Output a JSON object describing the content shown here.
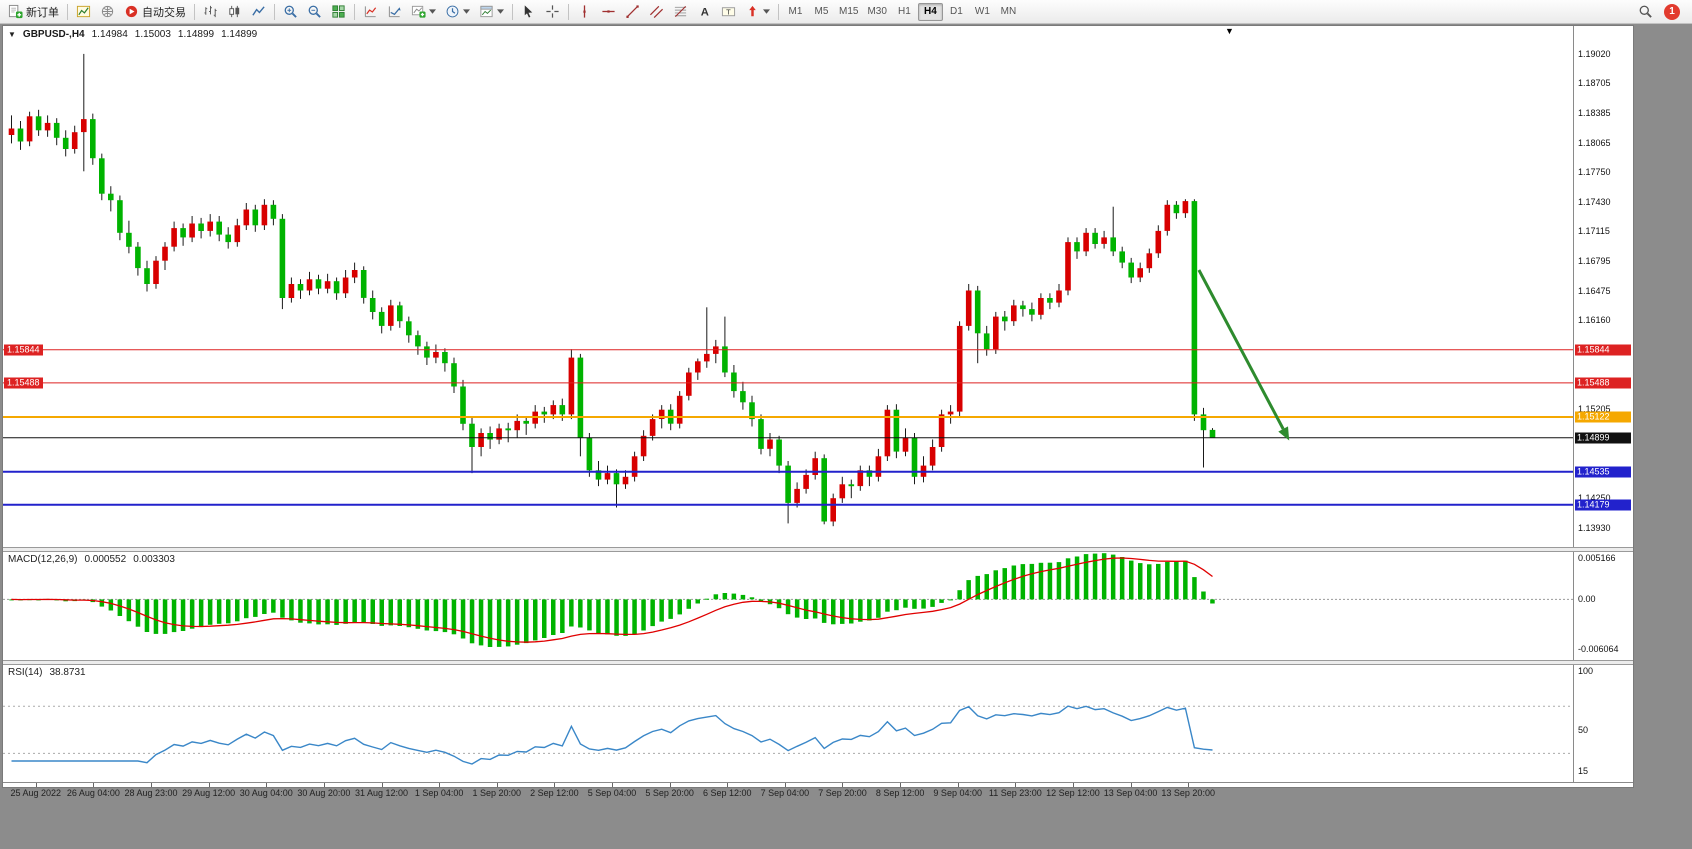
{
  "toolbar": {
    "new_order": "新订单",
    "autotrading": "自动交易",
    "timeframes": [
      "M1",
      "M5",
      "M15",
      "M30",
      "H1",
      "H4",
      "D1",
      "W1",
      "MN"
    ],
    "active_timeframe": "H4",
    "notification_count": "1"
  },
  "symbol_bar": {
    "dropdown_glyph": "▼",
    "title": "GBPUSD-,H4",
    "open": "1.14984",
    "high": "1.15003",
    "low": "1.14899",
    "close": "1.14899"
  },
  "shift_marker_glyph": "▼",
  "chart_data": {
    "type": "candlestick",
    "symbol": "GBPUSD-",
    "timeframe": "H4",
    "up_color": "#d80000",
    "down_color": "#00b300",
    "price_scale": {
      "min": 1.1378,
      "max": 1.1932
    },
    "axis_labels": [
      "1.19020",
      "1.18705",
      "1.18385",
      "1.18065",
      "1.17750",
      "1.17430",
      "1.17115",
      "1.16795",
      "1.16475",
      "1.16160",
      "1.15205",
      "1.14250",
      "1.13930"
    ],
    "hlines": [
      {
        "price": 1.15844,
        "label": "1.15844",
        "color": "#dd2222",
        "width": 1,
        "left_badge": true
      },
      {
        "price": 1.15488,
        "label": "1.15488",
        "color": "#dd2222",
        "width": 1,
        "left_badge": true
      },
      {
        "price": 1.15122,
        "label": "1.15122",
        "color": "#f5a800",
        "width": 2,
        "left_badge": false
      },
      {
        "price": 1.14535,
        "label": "1.14535",
        "color": "#2222cc",
        "width": 2,
        "left_badge": false
      },
      {
        "price": 1.14179,
        "label": "1.14179",
        "color": "#2222cc",
        "width": 2,
        "left_badge": false
      }
    ],
    "current_price": {
      "price": 1.14899,
      "label": "1.14899",
      "color": "#111111"
    },
    "annotation_arrow": {
      "from_bar": 131.5,
      "from_price": 1.167,
      "to_bar": 141.5,
      "to_price": 1.1487,
      "color": "#2e8b2e"
    },
    "candles": [
      [
        1.1815,
        1.1836,
        1.1806,
        1.1822
      ],
      [
        1.1822,
        1.183,
        1.1799,
        1.1808
      ],
      [
        1.1808,
        1.184,
        1.1803,
        1.1835
      ],
      [
        1.1835,
        1.1842,
        1.1814,
        1.182
      ],
      [
        1.182,
        1.1836,
        1.1813,
        1.1828
      ],
      [
        1.1828,
        1.1833,
        1.1804,
        1.1812
      ],
      [
        1.1812,
        1.182,
        1.1792,
        1.18
      ],
      [
        1.18,
        1.1825,
        1.1795,
        1.1818
      ],
      [
        1.1818,
        1.1902,
        1.1776,
        1.1832
      ],
      [
        1.1832,
        1.1838,
        1.1783,
        1.179
      ],
      [
        1.179,
        1.1795,
        1.1745,
        1.1752
      ],
      [
        1.1752,
        1.176,
        1.1733,
        1.1745
      ],
      [
        1.1745,
        1.175,
        1.1702,
        1.171
      ],
      [
        1.171,
        1.1723,
        1.1688,
        1.1695
      ],
      [
        1.1695,
        1.17,
        1.1664,
        1.1672
      ],
      [
        1.1672,
        1.168,
        1.1647,
        1.1655
      ],
      [
        1.1655,
        1.1685,
        1.165,
        1.168
      ],
      [
        1.168,
        1.17,
        1.167,
        1.1695
      ],
      [
        1.1695,
        1.1722,
        1.169,
        1.1715
      ],
      [
        1.1715,
        1.172,
        1.1696,
        1.1705
      ],
      [
        1.1705,
        1.1728,
        1.17,
        1.172
      ],
      [
        1.172,
        1.1726,
        1.1704,
        1.1712
      ],
      [
        1.1712,
        1.173,
        1.1706,
        1.1722
      ],
      [
        1.1722,
        1.1728,
        1.1701,
        1.1708
      ],
      [
        1.1708,
        1.1716,
        1.1693,
        1.17
      ],
      [
        1.17,
        1.1725,
        1.1695,
        1.1718
      ],
      [
        1.1718,
        1.1742,
        1.1713,
        1.1735
      ],
      [
        1.1735,
        1.174,
        1.1711,
        1.1718
      ],
      [
        1.1718,
        1.1746,
        1.1713,
        1.174
      ],
      [
        1.174,
        1.1745,
        1.1718,
        1.1725
      ],
      [
        1.1725,
        1.173,
        1.1628,
        1.164
      ],
      [
        1.164,
        1.1662,
        1.1635,
        1.1655
      ],
      [
        1.1655,
        1.166,
        1.1639,
        1.1648
      ],
      [
        1.1648,
        1.1668,
        1.1643,
        1.166
      ],
      [
        1.166,
        1.1665,
        1.1644,
        1.165
      ],
      [
        1.165,
        1.1666,
        1.1645,
        1.1658
      ],
      [
        1.1658,
        1.1662,
        1.1638,
        1.1645
      ],
      [
        1.1645,
        1.167,
        1.164,
        1.1662
      ],
      [
        1.1662,
        1.1678,
        1.1656,
        1.167
      ],
      [
        1.167,
        1.1674,
        1.1634,
        1.164
      ],
      [
        1.164,
        1.1648,
        1.1617,
        1.1625
      ],
      [
        1.1625,
        1.163,
        1.1602,
        1.161
      ],
      [
        1.161,
        1.1638,
        1.1605,
        1.1632
      ],
      [
        1.1632,
        1.1636,
        1.1608,
        1.1615
      ],
      [
        1.1615,
        1.162,
        1.1592,
        1.16
      ],
      [
        1.16,
        1.1605,
        1.1579,
        1.1588
      ],
      [
        1.1588,
        1.1593,
        1.1568,
        1.1576
      ],
      [
        1.1576,
        1.159,
        1.157,
        1.1582
      ],
      [
        1.1582,
        1.1586,
        1.1561,
        1.157
      ],
      [
        1.157,
        1.1576,
        1.1538,
        1.1545
      ],
      [
        1.1545,
        1.1552,
        1.1498,
        1.1505
      ],
      [
        1.1505,
        1.1512,
        1.1452,
        1.148
      ],
      [
        1.148,
        1.15,
        1.147,
        1.1495
      ],
      [
        1.1495,
        1.1502,
        1.1478,
        1.1488
      ],
      [
        1.1488,
        1.1505,
        1.1483,
        1.15
      ],
      [
        1.15,
        1.1506,
        1.1485,
        1.1498
      ],
      [
        1.1498,
        1.1515,
        1.149,
        1.1508
      ],
      [
        1.1508,
        1.1513,
        1.1493,
        1.1505
      ],
      [
        1.1505,
        1.1525,
        1.15,
        1.1518
      ],
      [
        1.1518,
        1.1523,
        1.1506,
        1.1515
      ],
      [
        1.1515,
        1.153,
        1.151,
        1.1525
      ],
      [
        1.1525,
        1.1532,
        1.1508,
        1.1515
      ],
      [
        1.1515,
        1.1585,
        1.151,
        1.1576
      ],
      [
        1.1576,
        1.158,
        1.147,
        1.149
      ],
      [
        1.149,
        1.1495,
        1.1448,
        1.1455
      ],
      [
        1.1455,
        1.1465,
        1.1438,
        1.1445
      ],
      [
        1.1445,
        1.146,
        1.144,
        1.1452
      ],
      [
        1.1452,
        1.1456,
        1.1415,
        1.144
      ],
      [
        1.144,
        1.1455,
        1.1435,
        1.1448
      ],
      [
        1.1448,
        1.1475,
        1.1443,
        1.147
      ],
      [
        1.147,
        1.1498,
        1.1465,
        1.1492
      ],
      [
        1.1492,
        1.1515,
        1.1487,
        1.151
      ],
      [
        1.151,
        1.1525,
        1.15,
        1.152
      ],
      [
        1.152,
        1.1526,
        1.1498,
        1.1505
      ],
      [
        1.1505,
        1.154,
        1.15,
        1.1535
      ],
      [
        1.1535,
        1.1565,
        1.153,
        1.156
      ],
      [
        1.156,
        1.1575,
        1.1552,
        1.1572
      ],
      [
        1.1572,
        1.163,
        1.1565,
        1.158
      ],
      [
        1.158,
        1.1595,
        1.157,
        1.1588
      ],
      [
        1.1588,
        1.162,
        1.1555,
        1.156
      ],
      [
        1.156,
        1.1568,
        1.1533,
        1.154
      ],
      [
        1.154,
        1.155,
        1.152,
        1.1528
      ],
      [
        1.1528,
        1.1535,
        1.1502,
        1.151
      ],
      [
        1.151,
        1.1515,
        1.1472,
        1.1478
      ],
      [
        1.1478,
        1.1495,
        1.147,
        1.1488
      ],
      [
        1.1488,
        1.1492,
        1.1452,
        1.146
      ],
      [
        1.146,
        1.1465,
        1.1398,
        1.142
      ],
      [
        1.142,
        1.1442,
        1.1415,
        1.1435
      ],
      [
        1.1435,
        1.1456,
        1.143,
        1.145
      ],
      [
        1.145,
        1.1475,
        1.1445,
        1.1468
      ],
      [
        1.1468,
        1.1472,
        1.1397,
        1.14
      ],
      [
        1.14,
        1.143,
        1.1395,
        1.1425
      ],
      [
        1.1425,
        1.1448,
        1.142,
        1.144
      ],
      [
        1.144,
        1.1445,
        1.1425,
        1.1438
      ],
      [
        1.1438,
        1.146,
        1.1433,
        1.1455
      ],
      [
        1.1455,
        1.146,
        1.1438,
        1.1448
      ],
      [
        1.1448,
        1.1478,
        1.1443,
        1.147
      ],
      [
        1.147,
        1.1525,
        1.1465,
        1.152
      ],
      [
        1.152,
        1.1526,
        1.1468,
        1.1475
      ],
      [
        1.1475,
        1.15,
        1.147,
        1.149
      ],
      [
        1.149,
        1.1495,
        1.144,
        1.1448
      ],
      [
        1.1448,
        1.147,
        1.1442,
        1.146
      ],
      [
        1.146,
        1.1488,
        1.1455,
        1.148
      ],
      [
        1.148,
        1.152,
        1.1475,
        1.1515
      ],
      [
        1.1515,
        1.1525,
        1.1505,
        1.1518
      ],
      [
        1.1518,
        1.1615,
        1.1513,
        1.161
      ],
      [
        1.161,
        1.1655,
        1.1605,
        1.1648
      ],
      [
        1.1648,
        1.1653,
        1.157,
        1.1602
      ],
      [
        1.1602,
        1.161,
        1.1578,
        1.1585
      ],
      [
        1.1585,
        1.1625,
        1.158,
        1.162
      ],
      [
        1.162,
        1.1626,
        1.1605,
        1.1615
      ],
      [
        1.1615,
        1.1638,
        1.161,
        1.1632
      ],
      [
        1.1632,
        1.1637,
        1.162,
        1.1628
      ],
      [
        1.1628,
        1.1635,
        1.1615,
        1.1622
      ],
      [
        1.1622,
        1.1645,
        1.1617,
        1.164
      ],
      [
        1.164,
        1.1645,
        1.1628,
        1.1635
      ],
      [
        1.1635,
        1.1655,
        1.163,
        1.1648
      ],
      [
        1.1648,
        1.1705,
        1.1643,
        1.17
      ],
      [
        1.17,
        1.1705,
        1.1682,
        1.169
      ],
      [
        1.169,
        1.1715,
        1.1685,
        1.171
      ],
      [
        1.171,
        1.1715,
        1.1693,
        1.1698
      ],
      [
        1.1698,
        1.1712,
        1.1693,
        1.1705
      ],
      [
        1.1705,
        1.1738,
        1.1685,
        1.169
      ],
      [
        1.169,
        1.1695,
        1.1672,
        1.1678
      ],
      [
        1.1678,
        1.1683,
        1.1656,
        1.1662
      ],
      [
        1.1662,
        1.1678,
        1.1657,
        1.1672
      ],
      [
        1.1672,
        1.1693,
        1.1667,
        1.1688
      ],
      [
        1.1688,
        1.1718,
        1.1683,
        1.1712
      ],
      [
        1.1712,
        1.1745,
        1.1707,
        1.174
      ],
      [
        1.174,
        1.1744,
        1.1725,
        1.1731
      ],
      [
        1.1731,
        1.1746,
        1.1726,
        1.1744
      ],
      [
        1.1744,
        1.1746,
        1.1508,
        1.1515
      ],
      [
        1.1515,
        1.1522,
        1.1458,
        1.1498
      ],
      [
        1.14984,
        1.15003,
        1.14899,
        1.14899
      ]
    ],
    "time_labels": [
      "25 Aug 2022",
      "26 Aug 04:00",
      "28 Aug 23:00",
      "29 Aug 12:00",
      "30 Aug 04:00",
      "30 Aug 20:00",
      "31 Aug 12:00",
      "1 Sep 04:00",
      "1 Sep 20:00",
      "2 Sep 12:00",
      "5 Sep 04:00",
      "5 Sep 20:00",
      "6 Sep 12:00",
      "7 Sep 04:00",
      "7 Sep 20:00",
      "8 Sep 12:00",
      "9 Sep 04:00",
      "11 Sep 23:00",
      "12 Sep 12:00",
      "13 Sep 04:00",
      "13 Sep 20:00"
    ],
    "macd": {
      "title": "MACD(12,26,9)",
      "value_main": "0.000552",
      "value_signal": "0.003303",
      "fast": 12,
      "slow": 26,
      "signal": 9,
      "scale_max": 0.005166,
      "scale_min": -0.006064,
      "axis_labels": [
        "0.005166",
        "0.00",
        "-0.006064"
      ],
      "hist_color": "#00b300",
      "signal_color": "#e00000"
    },
    "rsi": {
      "title": "RSI(14)",
      "value": "38.8731",
      "period": 14,
      "axis_labels": [
        "100",
        "50",
        "15"
      ],
      "levels": [
        70,
        30
      ],
      "scale_min": 10,
      "scale_max": 105,
      "line_color": "#3a87c8"
    }
  }
}
